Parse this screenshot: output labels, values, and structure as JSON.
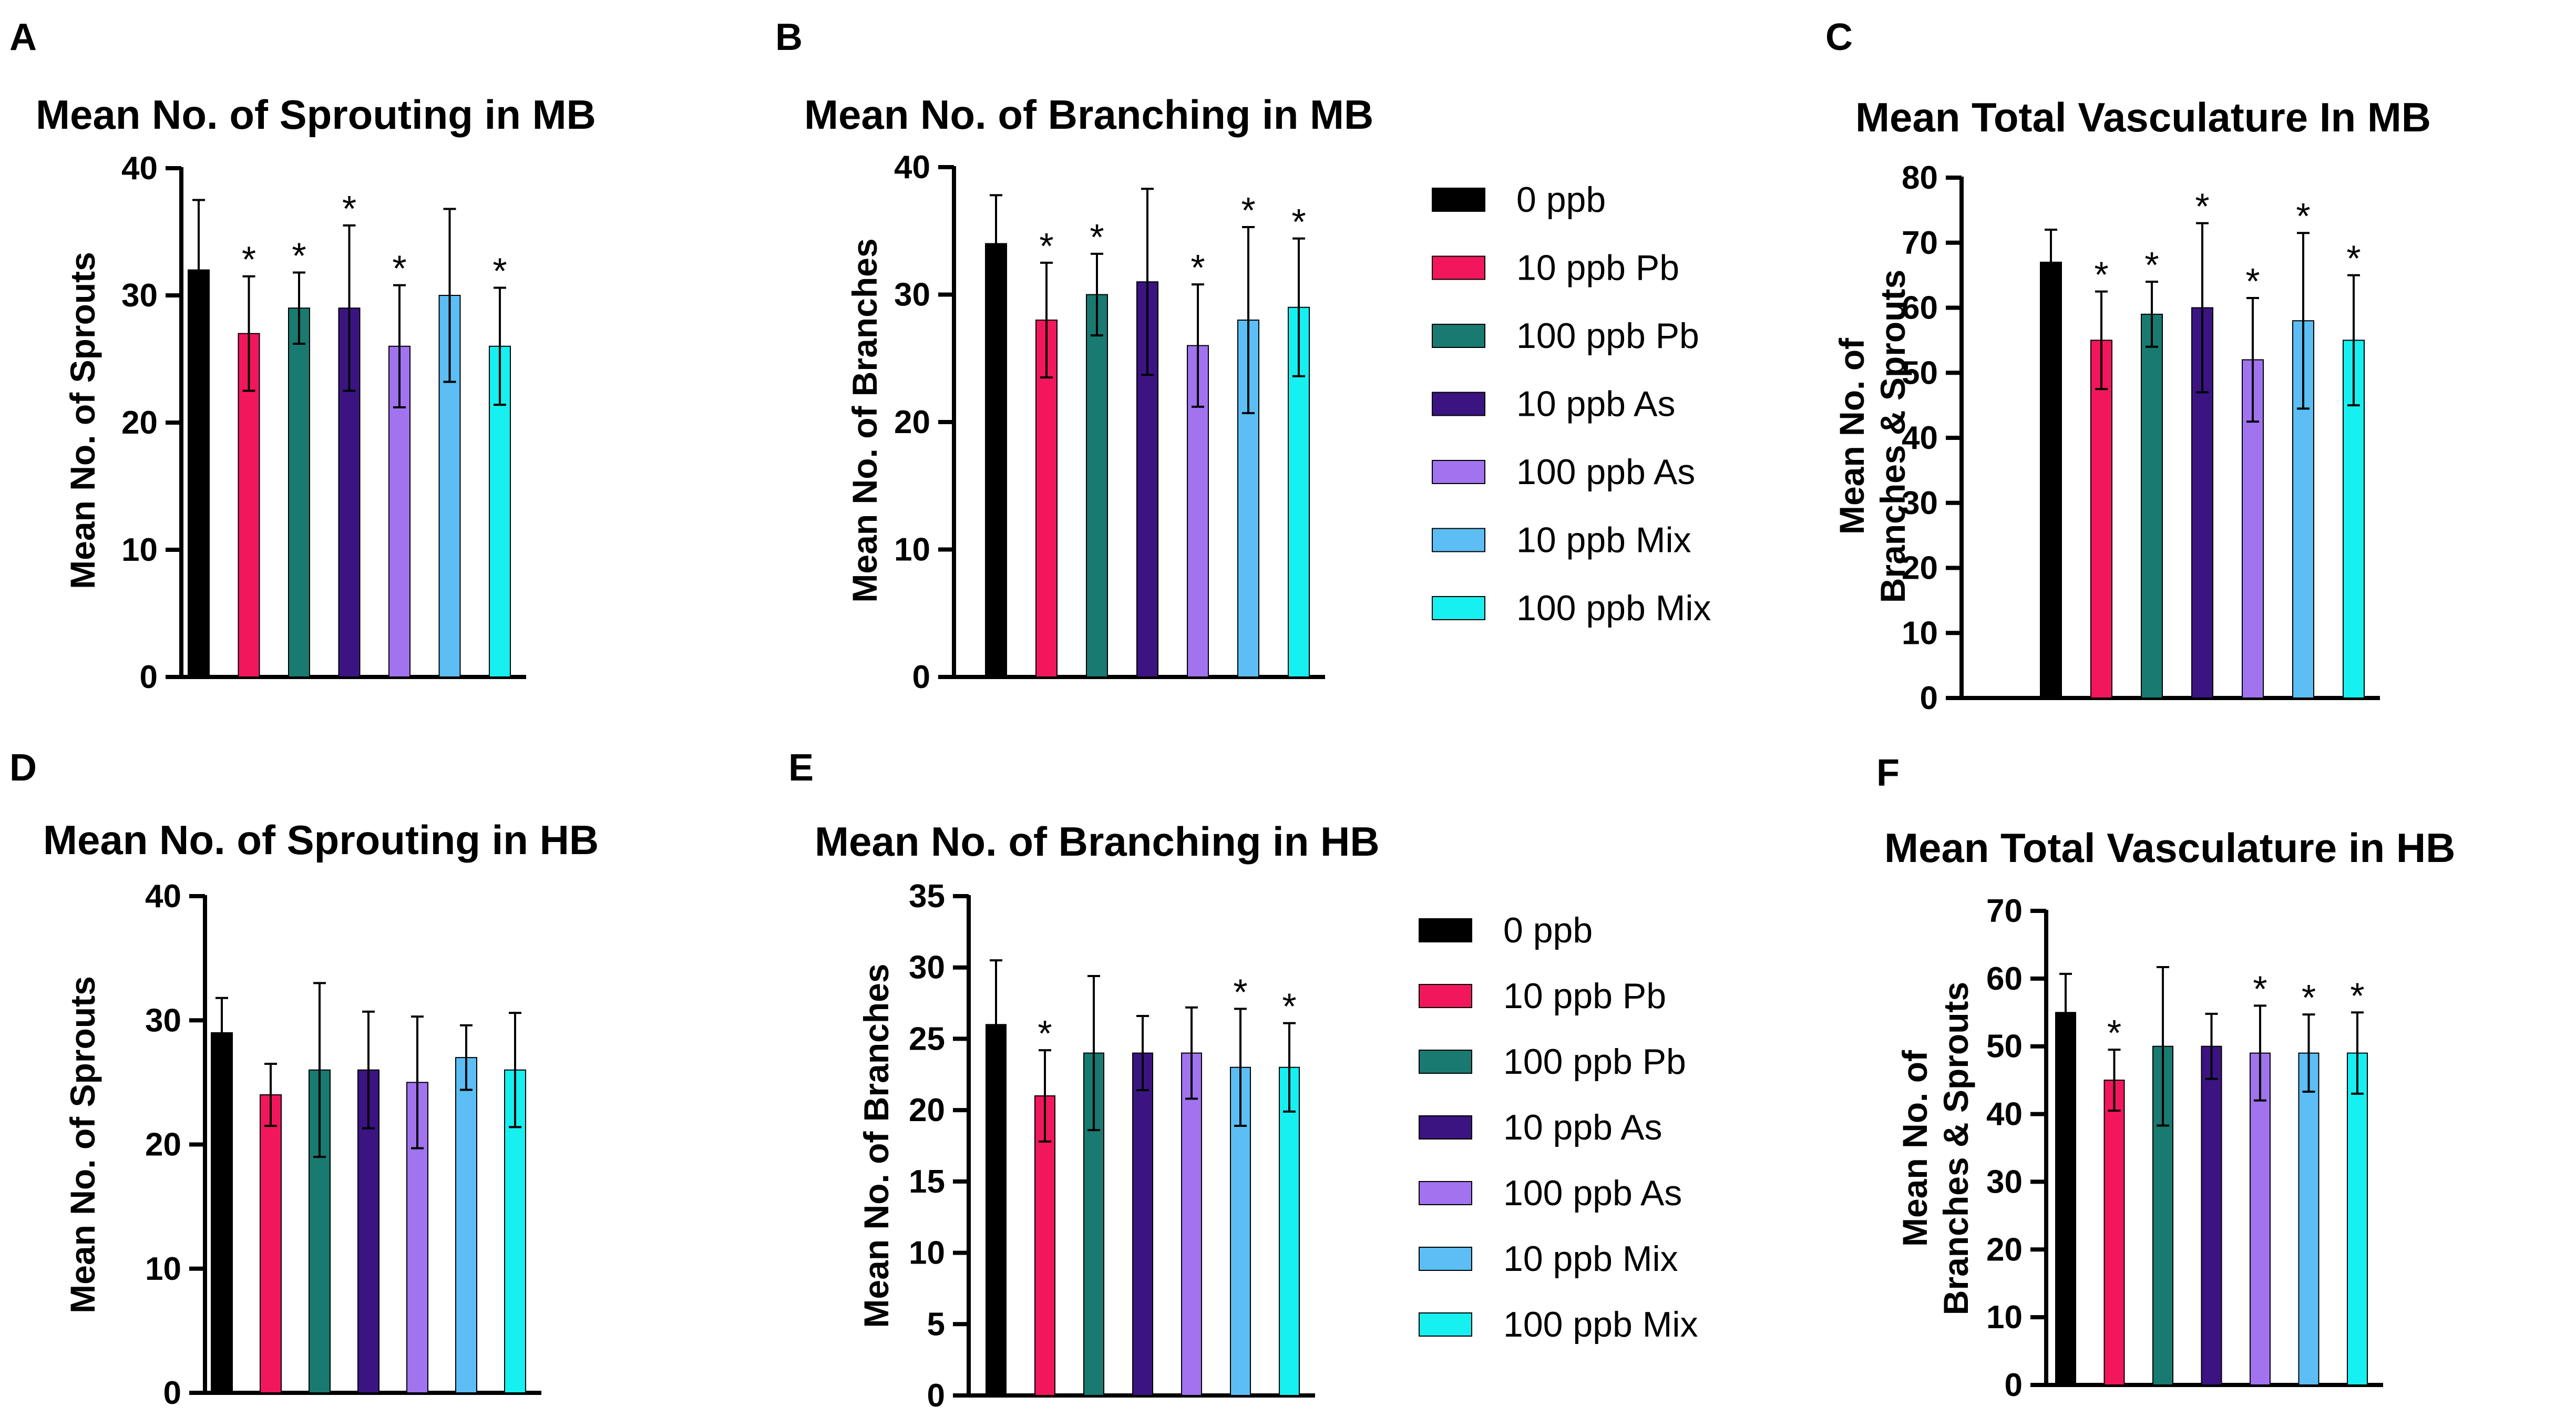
{
  "colors": {
    "0 ppb": "#000000",
    "10 ppb Pb": "#f2175d",
    "100 ppb Pb": "#187a70",
    "10 ppb As": "#3b1482",
    "100 ppb As": "#a173ef",
    "10 ppb Mix": "#5cbef5",
    "100 ppb Mix": "#16f0f0"
  },
  "legends": [
    {
      "id": "legend-top",
      "items": [
        "0 ppb",
        "10 ppb Pb",
        "100 ppb Pb",
        "10 ppb As",
        "100 ppb As",
        "10 ppb Mix",
        "100 ppb Mix"
      ]
    },
    {
      "id": "legend-bottom",
      "items": [
        "0 ppb",
        "10 ppb Pb",
        "100 ppb Pb",
        "10 ppb As",
        "100 ppb As",
        "10 ppb Mix",
        "100 ppb Mix"
      ]
    }
  ],
  "chart_data": [
    {
      "panel": "A",
      "type": "bar",
      "title": "Mean No. of Sprouting in MB",
      "ylabel": [
        "Mean No. of Sprouts"
      ],
      "ylim": [
        0,
        40
      ],
      "yticks": [
        0,
        10,
        20,
        30,
        40
      ],
      "categories": [
        "0 ppb",
        "10 ppb Pb",
        "100 ppb Pb",
        "10 ppb As",
        "100 ppb As",
        "10 ppb Mix",
        "100 ppb Mix"
      ],
      "values": [
        32,
        27,
        29,
        29,
        26,
        30,
        26
      ],
      "errors": [
        5.5,
        4.5,
        2.8,
        6.5,
        4.8,
        6.8,
        4.6
      ],
      "significant": [
        false,
        true,
        true,
        true,
        true,
        false,
        true
      ]
    },
    {
      "panel": "B",
      "type": "bar",
      "title": "Mean No. of Branching in MB",
      "ylabel": [
        "Mean No. of Branches"
      ],
      "ylim": [
        0,
        40
      ],
      "yticks": [
        0,
        10,
        20,
        30,
        40
      ],
      "categories": [
        "0 ppb",
        "10 ppb Pb",
        "100 ppb Pb",
        "10 ppb As",
        "100 ppb As",
        "10 ppb Mix",
        "100 ppb Mix"
      ],
      "values": [
        34,
        28,
        30,
        31,
        26,
        28,
        29
      ],
      "errors": [
        3.8,
        4.5,
        3.2,
        7.3,
        4.8,
        7.3,
        5.4
      ],
      "significant": [
        false,
        true,
        true,
        false,
        true,
        true,
        true
      ]
    },
    {
      "panel": "C",
      "type": "bar",
      "title": "Mean Total Vasculature In MB",
      "ylabel": [
        "Mean No. of",
        "Branches & Sprouts"
      ],
      "ylim": [
        0,
        80
      ],
      "yticks": [
        0,
        10,
        20,
        30,
        40,
        50,
        60,
        70,
        80
      ],
      "categories": [
        "0 ppb",
        "10 ppb Pb",
        "100 ppb Pb",
        "10 ppb As",
        "100 ppb As",
        "10 ppb Mix",
        "100 ppb Mix"
      ],
      "values": [
        67,
        55,
        59,
        60,
        52,
        58,
        55
      ],
      "errors": [
        5,
        7.5,
        5,
        13,
        9.5,
        13.5,
        10
      ],
      "significant": [
        false,
        true,
        true,
        true,
        true,
        true,
        true
      ]
    },
    {
      "panel": "D",
      "type": "bar",
      "title": "Mean No. of Sprouting in HB",
      "ylabel": [
        "Mean No. of Sprouts"
      ],
      "ylim": [
        0,
        40
      ],
      "yticks": [
        0,
        10,
        20,
        30,
        40
      ],
      "categories": [
        "0 ppb",
        "10 ppb Pb",
        "100 ppb Pb",
        "10 ppb As",
        "100 ppb As",
        "10 ppb Mix",
        "100 ppb Mix"
      ],
      "values": [
        29,
        24,
        26,
        26,
        25,
        27,
        26
      ],
      "errors": [
        2.8,
        2.5,
        7,
        4.7,
        5.3,
        2.6,
        4.6
      ],
      "significant": [
        false,
        false,
        false,
        false,
        false,
        false,
        false
      ]
    },
    {
      "panel": "E",
      "type": "bar",
      "title": "Mean No. of Branching in HB",
      "ylabel": [
        "Mean No. of Branches"
      ],
      "ylim": [
        0,
        35
      ],
      "yticks": [
        0,
        5,
        10,
        15,
        20,
        25,
        30,
        35
      ],
      "categories": [
        "0 ppb",
        "10 ppb Pb",
        "100 ppb Pb",
        "10 ppb As",
        "100 ppb As",
        "10 ppb Mix",
        "100 ppb Mix"
      ],
      "values": [
        26,
        21,
        24,
        24,
        24,
        23,
        23
      ],
      "errors": [
        4.5,
        3.2,
        5.4,
        2.6,
        3.2,
        4.1,
        3.1
      ],
      "significant": [
        false,
        true,
        false,
        false,
        false,
        true,
        true
      ]
    },
    {
      "panel": "F",
      "type": "bar",
      "title": "Mean Total Vasculature in HB",
      "ylabel": [
        "Mean No. of",
        "Branches & Sprouts"
      ],
      "ylim": [
        0,
        70
      ],
      "yticks": [
        0,
        10,
        20,
        30,
        40,
        50,
        60,
        70
      ],
      "categories": [
        "0 ppb",
        "10 ppb Pb",
        "100 ppb Pb",
        "10 ppb As",
        "100 ppb As",
        "10 ppb Mix",
        "100 ppb Mix"
      ],
      "values": [
        55,
        45,
        50,
        50,
        49,
        49,
        49
      ],
      "errors": [
        5.7,
        4.5,
        11.7,
        4.8,
        7,
        5.7,
        6
      ],
      "significant": [
        false,
        true,
        false,
        false,
        true,
        true,
        true
      ]
    }
  ]
}
